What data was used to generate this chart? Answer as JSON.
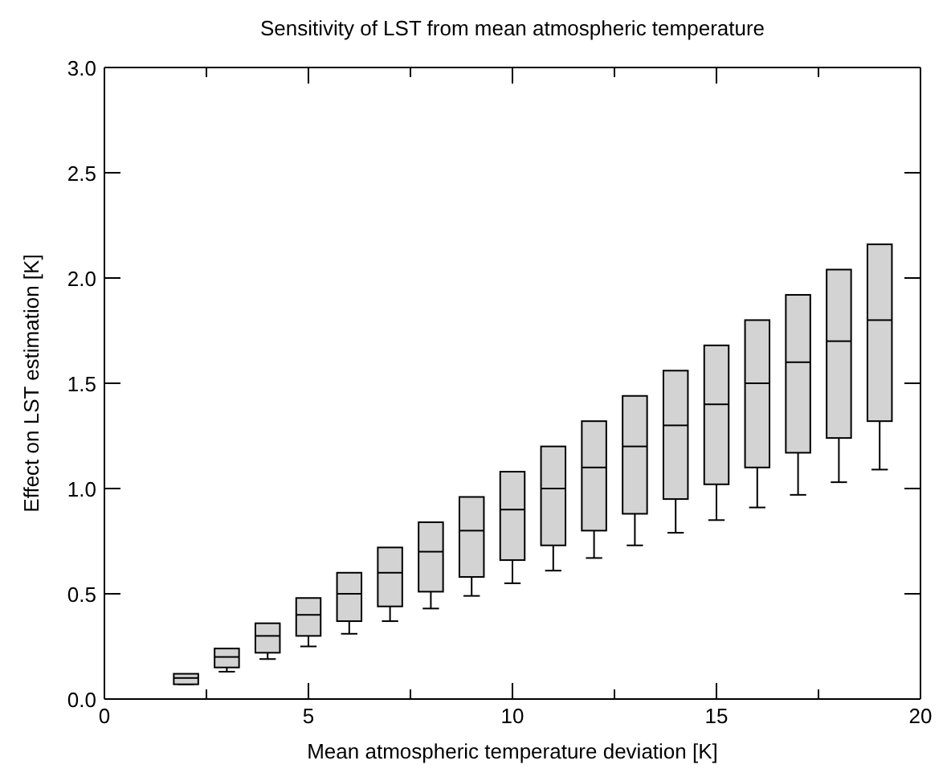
{
  "chart_data": {
    "type": "box",
    "title": "Sensitivity of LST from mean atmospheric temperature",
    "xlabel": "Mean atmospheric temperature deviation [K]",
    "ylabel": "Effect on LST estimation [K]",
    "x": [
      2,
      3,
      4,
      5,
      6,
      7,
      8,
      9,
      10,
      11,
      12,
      13,
      14,
      15,
      16,
      17,
      18,
      19
    ],
    "color": "#d3d3d3",
    "boxes": [
      {
        "low": 0.07,
        "q1": 0.07,
        "median": 0.1,
        "q3": 0.12,
        "high": 0.12
      },
      {
        "low": 0.13,
        "q1": 0.15,
        "median": 0.2,
        "q3": 0.24,
        "high": 0.24
      },
      {
        "low": 0.19,
        "q1": 0.22,
        "median": 0.3,
        "q3": 0.36,
        "high": 0.36
      },
      {
        "low": 0.25,
        "q1": 0.3,
        "median": 0.4,
        "q3": 0.48,
        "high": 0.48
      },
      {
        "low": 0.31,
        "q1": 0.37,
        "median": 0.5,
        "q3": 0.6,
        "high": 0.6
      },
      {
        "low": 0.37,
        "q1": 0.44,
        "median": 0.6,
        "q3": 0.72,
        "high": 0.72
      },
      {
        "low": 0.43,
        "q1": 0.51,
        "median": 0.7,
        "q3": 0.84,
        "high": 0.84
      },
      {
        "low": 0.49,
        "q1": 0.58,
        "median": 0.8,
        "q3": 0.96,
        "high": 0.96
      },
      {
        "low": 0.55,
        "q1": 0.66,
        "median": 0.9,
        "q3": 1.08,
        "high": 1.08
      },
      {
        "low": 0.61,
        "q1": 0.73,
        "median": 1.0,
        "q3": 1.2,
        "high": 1.2
      },
      {
        "low": 0.67,
        "q1": 0.8,
        "median": 1.1,
        "q3": 1.32,
        "high": 1.32
      },
      {
        "low": 0.73,
        "q1": 0.88,
        "median": 1.2,
        "q3": 1.44,
        "high": 1.44
      },
      {
        "low": 0.79,
        "q1": 0.95,
        "median": 1.3,
        "q3": 1.56,
        "high": 1.56
      },
      {
        "low": 0.85,
        "q1": 1.02,
        "median": 1.4,
        "q3": 1.68,
        "high": 1.68
      },
      {
        "low": 0.91,
        "q1": 1.1,
        "median": 1.5,
        "q3": 1.8,
        "high": 1.8
      },
      {
        "low": 0.97,
        "q1": 1.17,
        "median": 1.6,
        "q3": 1.92,
        "high": 1.92
      },
      {
        "low": 1.03,
        "q1": 1.24,
        "median": 1.7,
        "q3": 2.04,
        "high": 2.04
      },
      {
        "low": 1.09,
        "q1": 1.32,
        "median": 1.8,
        "q3": 2.16,
        "high": 2.16
      }
    ],
    "xlim": [
      0,
      20
    ],
    "xticks": [
      0,
      {
        "value": 2.5,
        "label": null
      },
      5,
      {
        "value": 7.5,
        "label": null
      },
      10,
      {
        "value": 12.5,
        "label": null
      },
      15,
      {
        "value": 17.5,
        "label": null
      },
      20
    ],
    "ylim": [
      0,
      3
    ],
    "yticks": [
      {
        "value": 0,
        "label": "0.0"
      },
      {
        "value": 0.5,
        "label": "0.5"
      },
      {
        "value": 1,
        "label": "1.0"
      },
      {
        "value": 1.5,
        "label": "1.5"
      },
      {
        "value": 2,
        "label": "2.0"
      },
      {
        "value": 2.5,
        "label": "2.5"
      },
      {
        "value": 3,
        "label": "3.0"
      }
    ],
    "grid": false,
    "legend": false
  }
}
